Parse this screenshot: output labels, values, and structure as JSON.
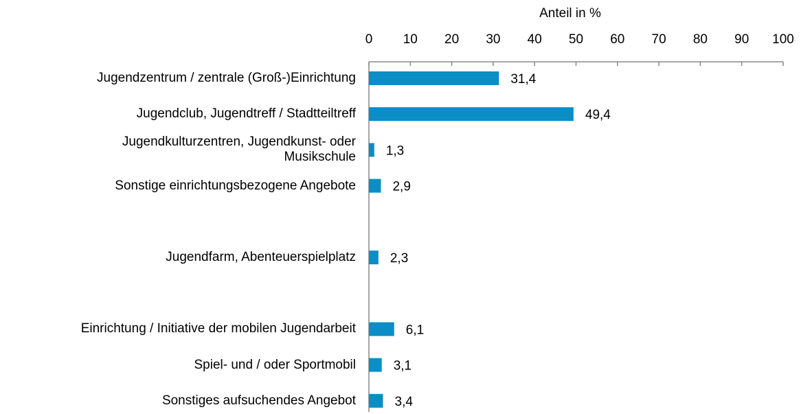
{
  "chart_data": {
    "type": "barh",
    "x_label": "Anteil in %",
    "categories": [
      "Jugendzentrum / zentrale (Groß-)Einrichtung",
      "Jugendclub, Jugendtreff / Stadtteiltreff",
      "Jugendkulturzentren, Jugendkunst- oder\nMusikschule",
      "Sonstige einrichtungsbezogene Angebote",
      null,
      "Jugendfarm, Abenteuerspielplatz",
      null,
      "Einrichtung / Initiative der mobilen Jugendarbeit",
      "Spiel- und / oder Sportmobil",
      "Sonstiges aufsuchendes Angebot"
    ],
    "values": [
      31.4,
      49.4,
      1.3,
      2.9,
      null,
      2.3,
      null,
      6.1,
      3.1,
      3.4
    ],
    "value_labels": [
      "31,4",
      "49,4",
      "1,3",
      "2,9",
      null,
      "2,3",
      null,
      "6,1",
      "3,1",
      "3,4"
    ],
    "color": "#0b8ec6",
    "xlim": [
      0,
      100
    ],
    "xticks": [
      0,
      10,
      20,
      30,
      40,
      50,
      60,
      70,
      80,
      90,
      100
    ]
  }
}
